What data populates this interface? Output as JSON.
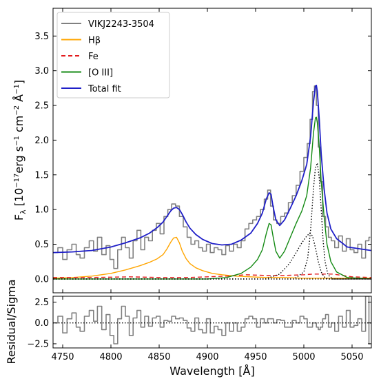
{
  "chart_data": [
    {
      "type": "line",
      "xlabel": "Wavelength [Å]",
      "ylabel_parts": {
        "main": "F",
        "sub": "λ",
        "unit": " [10",
        "exp1": "−17",
        "rest": "erg s",
        "exp2": "−1",
        "rest2": " cm",
        "exp3": "−2",
        "rest3": " Å",
        "exp4": "−1",
        "close": "]"
      },
      "xlim": [
        4740,
        5070
      ],
      "ylim": [
        -0.2,
        3.9
      ],
      "xticks": [
        4750,
        4800,
        4850,
        4900,
        4950,
        5000,
        5050
      ],
      "xtick_labels": [
        "4750",
        "4800",
        "4850",
        "4900",
        "4950",
        "5000",
        "5050"
      ],
      "yticks": [
        0.0,
        0.5,
        1.0,
        1.5,
        2.0,
        2.5,
        3.0,
        3.5
      ],
      "ytick_labels": [
        "0.0",
        "0.5",
        "1.0",
        "1.5",
        "2.0",
        "2.5",
        "3.0",
        "3.5"
      ],
      "legend": {
        "placement": "top-left",
        "entries": [
          {
            "label": "VIKJ2243-3504",
            "color": "#808080",
            "style": "solid"
          },
          {
            "label": "Hβ",
            "color": "#ffa500",
            "style": "solid"
          },
          {
            "label": "Fe",
            "color": "#e31a1c",
            "style": "dashed"
          },
          {
            "label": "[O III]",
            "color": "#138a13",
            "style": "solid"
          },
          {
            "label": "Total fit",
            "color": "#1f1fc8",
            "style": "solid"
          }
        ]
      },
      "series": [
        {
          "name": "VIKJ2243-3504",
          "kind": "step",
          "color": "#808080",
          "x": [
            4742,
            4748,
            4752,
            4757,
            4762,
            4766,
            4770,
            4775,
            4780,
            4784,
            4788,
            4793,
            4797,
            4801,
            4805,
            4809,
            4813,
            4817,
            4821,
            4825,
            4829,
            4833,
            4837,
            4841,
            4845,
            4849,
            4853,
            4857,
            4861,
            4865,
            4869,
            4873,
            4877,
            4881,
            4885,
            4889,
            4893,
            4897,
            4901,
            4905,
            4909,
            4913,
            4917,
            4921,
            4925,
            4929,
            4933,
            4937,
            4941,
            4945,
            4949,
            4953,
            4957,
            4961,
            4964,
            4967,
            4970,
            4974,
            4978,
            4982,
            4986,
            4990,
            4994,
            4998,
            5002,
            5005,
            5008,
            5010,
            5012,
            5014,
            5016,
            5018,
            5021,
            5024,
            5027,
            5030,
            5034,
            5038,
            5042,
            5046,
            5050,
            5054,
            5058,
            5062,
            5066,
            5069
          ],
          "y": [
            0.38,
            0.45,
            0.28,
            0.42,
            0.5,
            0.35,
            0.3,
            0.45,
            0.55,
            0.4,
            0.6,
            0.35,
            0.48,
            0.28,
            0.15,
            0.42,
            0.6,
            0.45,
            0.3,
            0.55,
            0.7,
            0.42,
            0.6,
            0.55,
            0.7,
            0.8,
            0.65,
            0.9,
            1.0,
            1.08,
            1.05,
            0.9,
            0.75,
            0.6,
            0.5,
            0.55,
            0.45,
            0.4,
            0.5,
            0.38,
            0.45,
            0.42,
            0.35,
            0.48,
            0.4,
            0.5,
            0.45,
            0.55,
            0.72,
            0.8,
            0.85,
            0.9,
            1.0,
            1.15,
            1.28,
            1.05,
            0.85,
            0.8,
            0.9,
            0.95,
            1.1,
            1.2,
            1.35,
            1.55,
            1.75,
            1.95,
            2.3,
            2.7,
            2.78,
            2.5,
            1.9,
            1.4,
            0.9,
            0.75,
            0.6,
            0.55,
            0.45,
            0.62,
            0.4,
            0.58,
            0.42,
            0.38,
            0.5,
            0.3,
            0.55,
            0.6
          ]
        },
        {
          "name": "Hβ",
          "kind": "line",
          "color": "#ffa500",
          "x": [
            4740,
            4760,
            4780,
            4800,
            4815,
            4830,
            4840,
            4848,
            4854,
            4858,
            4862,
            4865,
            4868,
            4871,
            4874,
            4878,
            4882,
            4888,
            4895,
            4905,
            4915,
            4930,
            4945,
            4960,
            4980,
            5000,
            5020,
            5040,
            5070
          ],
          "y": [
            0.01,
            0.02,
            0.04,
            0.08,
            0.13,
            0.19,
            0.24,
            0.29,
            0.35,
            0.43,
            0.53,
            0.59,
            0.6,
            0.52,
            0.4,
            0.29,
            0.22,
            0.16,
            0.12,
            0.08,
            0.06,
            0.04,
            0.03,
            0.02,
            0.02,
            0.01,
            0.01,
            0.01,
            0.01
          ]
        },
        {
          "name": "Fe",
          "kind": "line",
          "color": "#e31a1c",
          "dashed": true,
          "x": [
            4740,
            4780,
            4820,
            4850,
            4880,
            4900,
            4920,
            4940,
            4960,
            4980,
            5000,
            5010,
            5020,
            5030,
            5040,
            5050,
            5070
          ],
          "y": [
            0.02,
            0.02,
            0.03,
            0.02,
            0.02,
            0.03,
            0.04,
            0.06,
            0.05,
            0.05,
            0.06,
            0.07,
            0.07,
            0.07,
            0.05,
            0.03,
            0.02
          ]
        },
        {
          "name": "[O III]",
          "kind": "line",
          "color": "#138a13",
          "x": [
            4740,
            4900,
            4920,
            4935,
            4945,
            4952,
            4957,
            4961,
            4964,
            4966,
            4968,
            4971,
            4975,
            4980,
            4986,
            4992,
            4998,
            5003,
            5007,
            5010,
            5012,
            5013,
            5014,
            5016,
            5018,
            5021,
            5024,
            5028,
            5034,
            5045,
            5070
          ],
          "y": [
            0.0,
            0.0,
            0.02,
            0.08,
            0.17,
            0.28,
            0.42,
            0.65,
            0.8,
            0.78,
            0.62,
            0.4,
            0.3,
            0.4,
            0.6,
            0.8,
            0.98,
            1.2,
            1.6,
            2.1,
            2.32,
            2.33,
            2.25,
            1.9,
            1.4,
            0.9,
            0.5,
            0.25,
            0.1,
            0.02,
            0.0
          ]
        },
        {
          "name": "",
          "kind": "line",
          "color": "#000000",
          "dotted": true,
          "x": [
            4740,
            4960,
            4975,
            4985,
            4992,
            4997,
            5002,
            5006,
            5009,
            5012,
            5015,
            5018,
            5021,
            5025,
            5030,
            5070
          ],
          "y": [
            0.0,
            0.0,
            0.07,
            0.22,
            0.38,
            0.5,
            0.6,
            0.66,
            0.62,
            0.45,
            0.25,
            0.1,
            0.03,
            0.0,
            0.0,
            0.0
          ]
        },
        {
          "name": "",
          "kind": "line",
          "color": "#000000",
          "dotted": true,
          "x": [
            4740,
            4990,
            5000,
            5004,
            5007,
            5010,
            5012,
            5014,
            5016,
            5018,
            5020,
            5022,
            5025,
            5030,
            5070
          ],
          "y": [
            0.0,
            0.0,
            0.1,
            0.3,
            0.7,
            1.3,
            1.6,
            1.67,
            1.45,
            1.0,
            0.55,
            0.25,
            0.06,
            0.0,
            0.0
          ]
        },
        {
          "name": "Total fit",
          "kind": "line",
          "color": "#1f1fc8",
          "x": [
            4740,
            4760,
            4780,
            4800,
            4815,
            4830,
            4840,
            4848,
            4854,
            4858,
            4862,
            4865,
            4868,
            4871,
            4874,
            4878,
            4882,
            4888,
            4895,
            4905,
            4915,
            4925,
            4935,
            4945,
            4952,
            4957,
            4961,
            4964,
            4966,
            4968,
            4971,
            4975,
            4980,
            4986,
            4992,
            4998,
            5003,
            5007,
            5010,
            5012,
            5013,
            5014,
            5016,
            5018,
            5021,
            5024,
            5028,
            5034,
            5045,
            5070
          ],
          "y": [
            0.38,
            0.39,
            0.41,
            0.46,
            0.52,
            0.59,
            0.66,
            0.74,
            0.82,
            0.9,
            0.98,
            1.02,
            1.03,
            1.0,
            0.93,
            0.82,
            0.73,
            0.64,
            0.57,
            0.51,
            0.49,
            0.5,
            0.56,
            0.66,
            0.8,
            0.95,
            1.15,
            1.24,
            1.22,
            1.05,
            0.85,
            0.77,
            0.85,
            1.02,
            1.2,
            1.42,
            1.65,
            2.05,
            2.55,
            2.78,
            2.79,
            2.7,
            2.3,
            1.8,
            1.3,
            0.95,
            0.72,
            0.58,
            0.46,
            0.41
          ]
        },
        {
          "name": "",
          "kind": "hline",
          "color": "#000000",
          "dotted": true,
          "y": 0.0
        }
      ]
    },
    {
      "type": "line",
      "xlabel": "Wavelength [Å]",
      "ylabel": "Residual/Sigma",
      "xlim": [
        4740,
        5070
      ],
      "ylim": [
        -3.0,
        3.2
      ],
      "yticks": [
        -2.5,
        0.0,
        2.5
      ],
      "ytick_labels": [
        "−2.5",
        "0.0",
        "2.5"
      ],
      "xticks": [
        4750,
        4800,
        4850,
        4900,
        4950,
        5000,
        5050
      ],
      "xtick_labels": [
        "4750",
        "4800",
        "4850",
        "4900",
        "4950",
        "5000",
        "5050"
      ],
      "series": [
        {
          "name": "",
          "kind": "step",
          "color": "#808080",
          "x": [
            4742,
            4748,
            4752,
            4757,
            4762,
            4766,
            4770,
            4775,
            4780,
            4784,
            4788,
            4793,
            4797,
            4801,
            4805,
            4809,
            4813,
            4817,
            4821,
            4825,
            4829,
            4833,
            4837,
            4841,
            4845,
            4849,
            4853,
            4857,
            4861,
            4865,
            4869,
            4873,
            4877,
            4881,
            4885,
            4889,
            4893,
            4897,
            4901,
            4905,
            4909,
            4913,
            4917,
            4921,
            4925,
            4929,
            4933,
            4937,
            4941,
            4945,
            4949,
            4953,
            4957,
            4961,
            4964,
            4967,
            4970,
            4974,
            4978,
            4982,
            4986,
            4990,
            4994,
            4998,
            5002,
            5005,
            5008,
            5010,
            5012,
            5014,
            5016,
            5018,
            5021,
            5024,
            5027,
            5030,
            5034,
            5038,
            5042,
            5046,
            5050,
            5054,
            5058,
            5062,
            5066,
            5069
          ],
          "y": [
            0.0,
            0.8,
            -1.2,
            0.5,
            1.2,
            -0.5,
            -1.0,
            0.8,
            1.5,
            0.2,
            2.0,
            -0.8,
            1.0,
            -1.5,
            -2.5,
            0.5,
            2.0,
            0.8,
            -1.5,
            0.6,
            1.5,
            -0.5,
            0.8,
            -0.4,
            0.6,
            0.8,
            -0.5,
            0.3,
            0.2,
            0.8,
            0.5,
            0.6,
            0.3,
            -0.6,
            -1.0,
            0.6,
            -0.8,
            -1.2,
            0.5,
            -1.2,
            -0.4,
            -0.8,
            -1.5,
            0.0,
            -1.0,
            0.0,
            -1.0,
            -0.5,
            0.5,
            0.8,
            0.5,
            -0.5,
            0.5,
            0.0,
            0.5,
            0.5,
            0.0,
            0.4,
            0.3,
            -0.5,
            -0.5,
            0.3,
            0.0,
            0.8,
            0.5,
            -0.5,
            -0.5,
            0.0,
            0.0,
            -0.5,
            -0.8,
            -0.5,
            0.5,
            1.0,
            -0.5,
            0.0,
            -1.0,
            0.8,
            -0.5,
            1.5,
            -0.5,
            -0.3,
            0.5,
            -1.0,
            3.2,
            -2.5
          ]
        },
        {
          "name": "",
          "kind": "hline",
          "color": "#000000",
          "dotted": true,
          "y": 0.0
        }
      ]
    }
  ]
}
